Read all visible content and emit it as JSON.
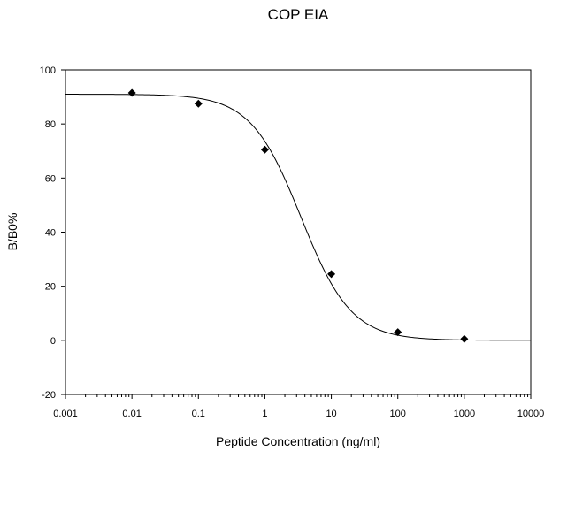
{
  "chart_data": {
    "type": "scatter",
    "title": "COP EIA",
    "xlabel": "Peptide Concentration (ng/ml)",
    "ylabel": "B/B0%",
    "xscale": "log",
    "xlim": [
      0.001,
      10000
    ],
    "ylim": [
      -20,
      100
    ],
    "x_ticks": [
      "0.001",
      "0.01",
      "0.1",
      "1",
      "10",
      "100",
      "1000",
      "10000"
    ],
    "y_ticks": [
      "-20",
      "0",
      "20",
      "40",
      "60",
      "80",
      "100"
    ],
    "grid": false,
    "legend": "none",
    "series": [
      {
        "x": [
          0.01,
          0.1,
          1,
          10,
          100,
          1000
        ],
        "y": [
          91.5,
          87.5,
          70.5,
          24.5,
          3,
          0.5
        ]
      }
    ],
    "fit_curve": {
      "type": "4-parameter logistic",
      "top": 91,
      "bottom": 0,
      "ec50": 3.5,
      "hill": 1.15
    },
    "marker_color": "#000000",
    "line_color": "#000000"
  }
}
